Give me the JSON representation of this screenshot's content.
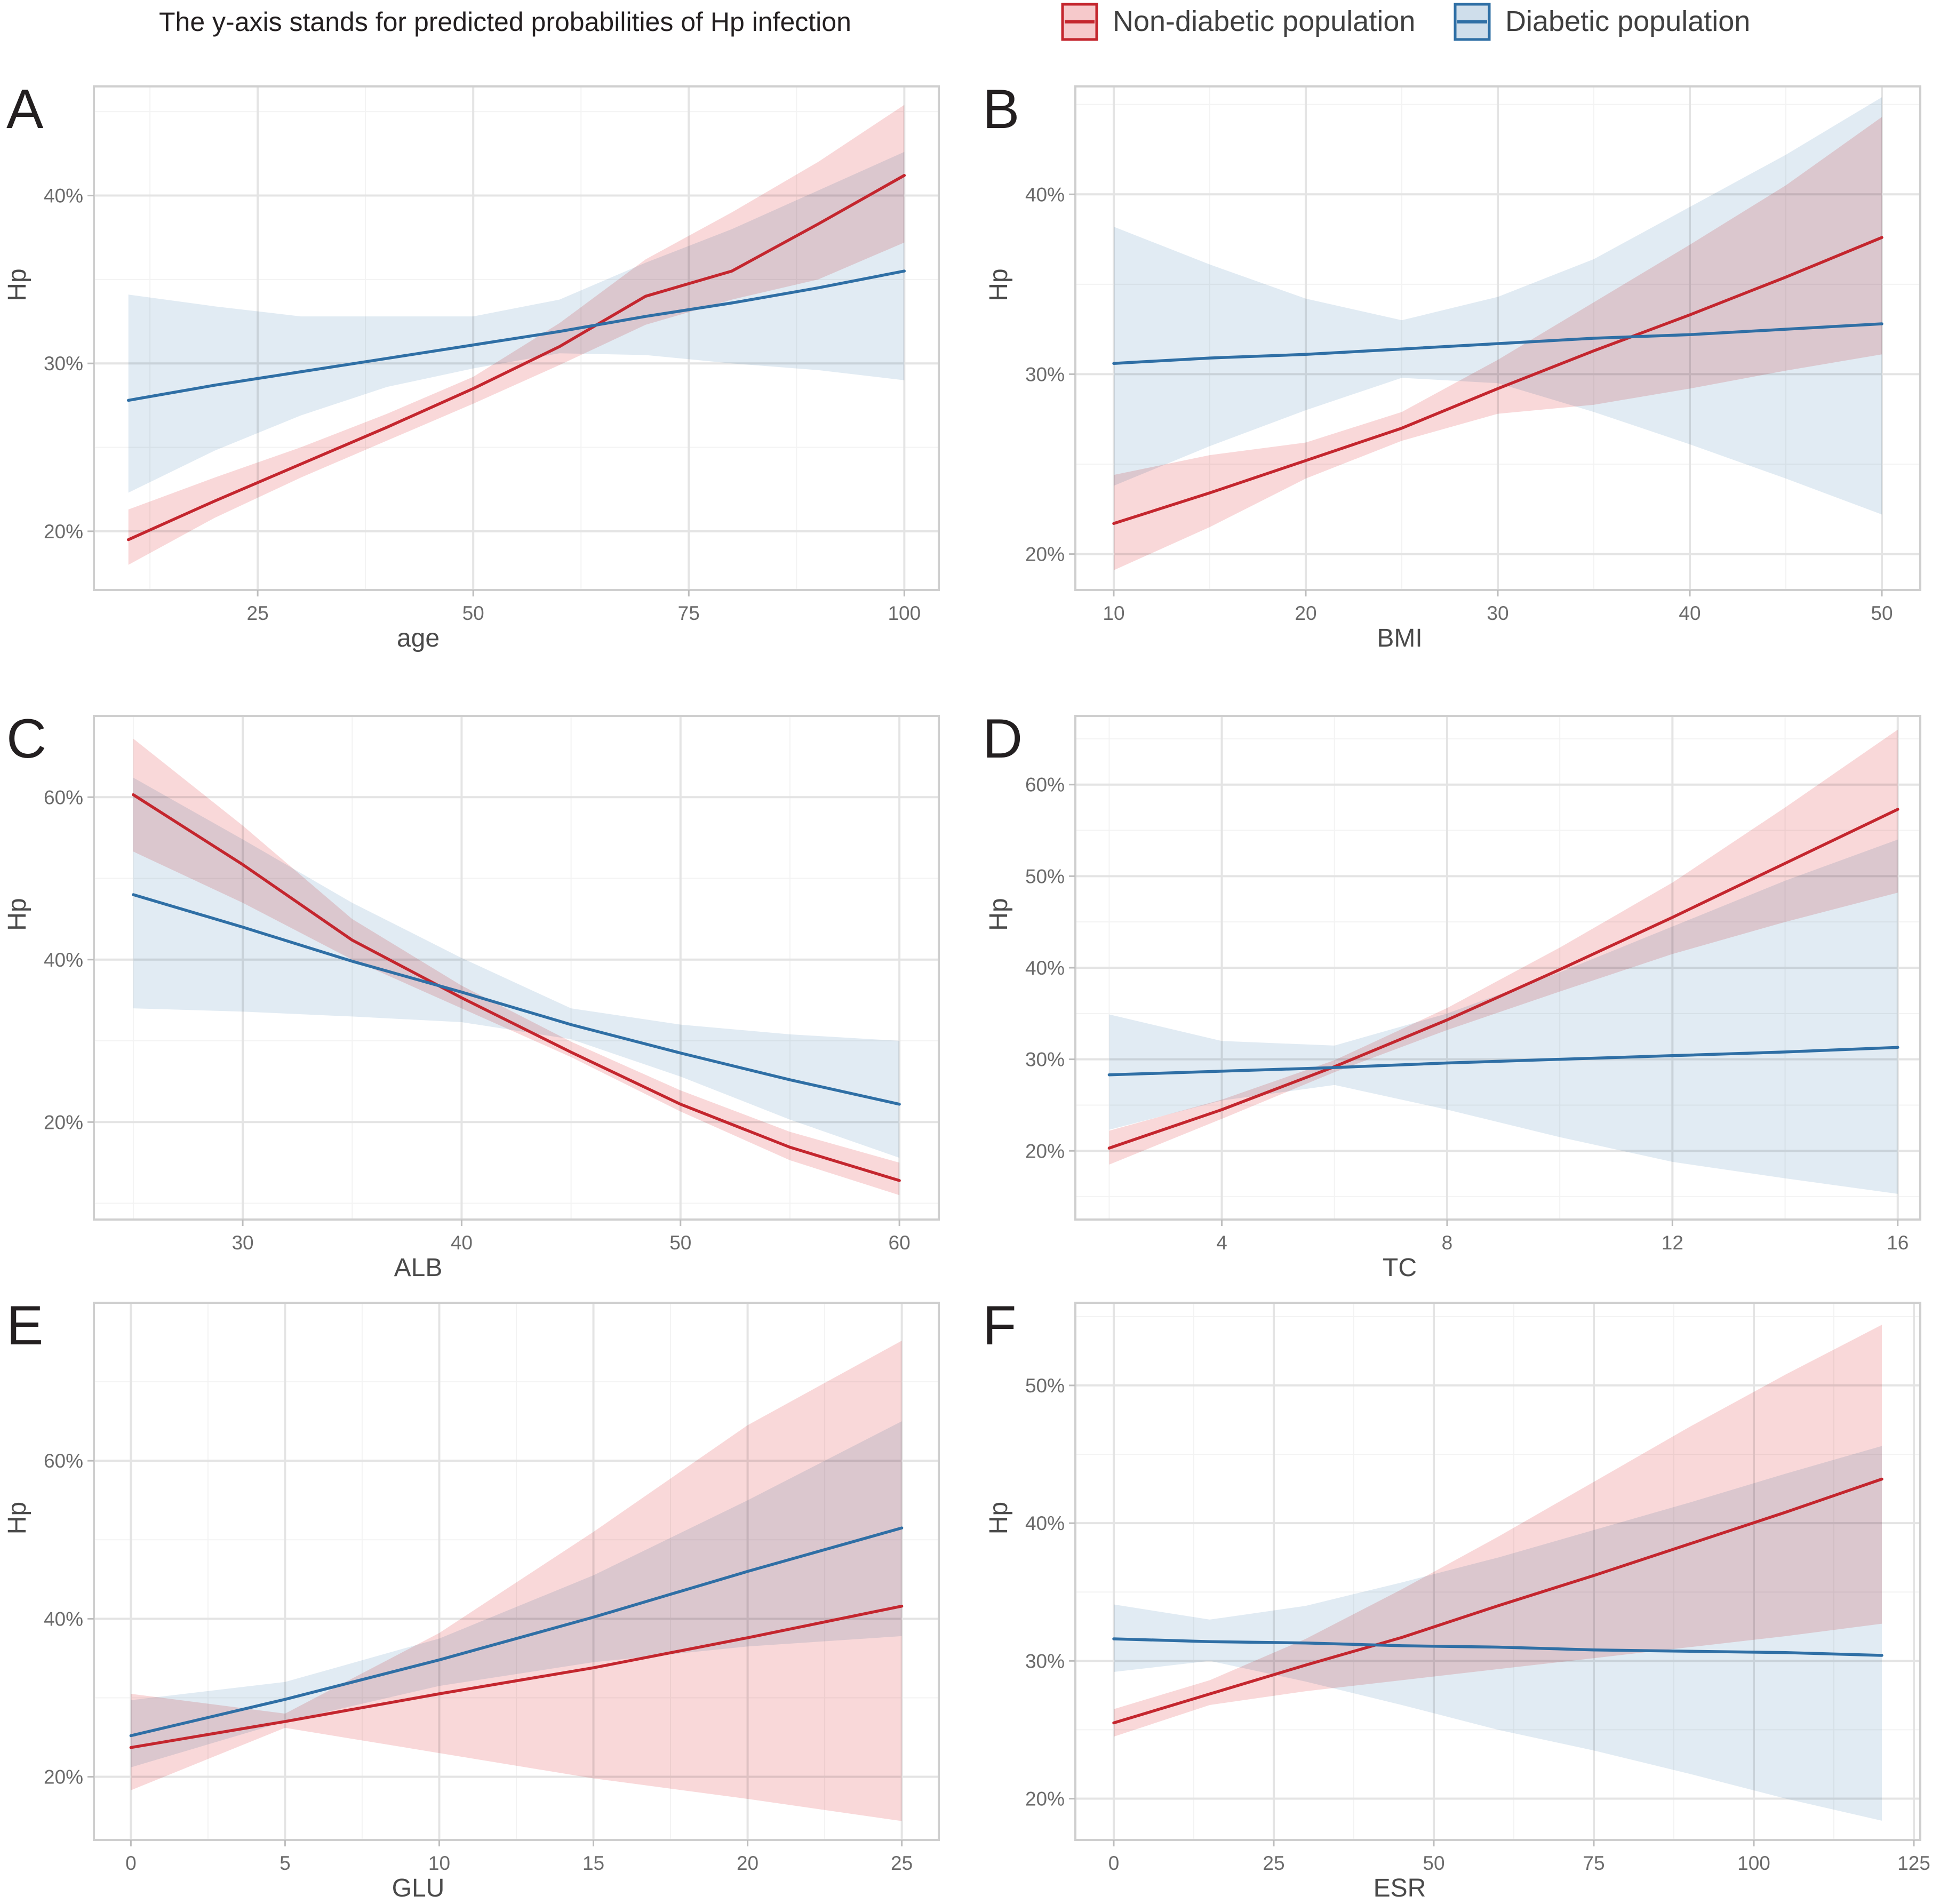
{
  "caption": "The y-axis stands for predicted probabilities of Hp infection",
  "legend": [
    {
      "label": "Non-diabetic population",
      "line_color": "#c4262e",
      "fill_color": "#f6c9cb"
    },
    {
      "label": "Diabetic population",
      "line_color": "#2f6fa5",
      "fill_color": "#cfdeeb"
    }
  ],
  "chart_data": [
    {
      "panel": "A",
      "type": "line",
      "xlabel": "age",
      "ylabel": "Hp",
      "xlim": [
        6,
        104
      ],
      "ylim": [
        16.5,
        46.5
      ],
      "xticks": [
        25,
        50,
        75,
        100
      ],
      "xtick_labels": [
        "25",
        "50",
        "75",
        "100"
      ],
      "yticks": [
        20,
        30,
        40
      ],
      "ytick_labels": [
        "20%",
        "30%",
        "40%"
      ],
      "minor_x": [
        12.5,
        37.5,
        62.5,
        87.5
      ],
      "minor_y": [
        25,
        35,
        45
      ],
      "series": [
        {
          "name": "Non-diabetic population",
          "x": [
            10,
            20,
            30,
            40,
            50,
            60,
            70,
            80,
            90,
            100
          ],
          "y": [
            19.5,
            21.8,
            24.0,
            26.2,
            28.5,
            31.0,
            34.0,
            35.5,
            38.3,
            41.2
          ],
          "lower": [
            18.0,
            20.8,
            23.2,
            25.4,
            27.6,
            29.9,
            32.3,
            33.8,
            35.0,
            37.2
          ],
          "upper": [
            21.3,
            23.2,
            25.0,
            27.0,
            29.2,
            32.4,
            36.2,
            39.0,
            42.0,
            45.4
          ]
        },
        {
          "name": "Diabetic population",
          "x": [
            10,
            20,
            30,
            40,
            50,
            60,
            70,
            80,
            90,
            100
          ],
          "y": [
            27.8,
            28.7,
            29.5,
            30.3,
            31.1,
            31.9,
            32.8,
            33.6,
            34.5,
            35.5
          ],
          "lower": [
            22.3,
            24.8,
            26.9,
            28.6,
            29.7,
            30.6,
            30.5,
            30.0,
            29.6,
            29.0
          ],
          "upper": [
            34.1,
            33.4,
            32.8,
            32.8,
            32.8,
            33.8,
            36.0,
            38.0,
            40.3,
            42.6
          ]
        }
      ]
    },
    {
      "panel": "B",
      "type": "line",
      "xlabel": "BMI",
      "ylabel": "Hp",
      "xlim": [
        8,
        52
      ],
      "ylim": [
        18,
        46
      ],
      "xticks": [
        10,
        20,
        30,
        40,
        50
      ],
      "xtick_labels": [
        "10",
        "20",
        "30",
        "40",
        "50"
      ],
      "yticks": [
        20,
        30,
        40
      ],
      "ytick_labels": [
        "20%",
        "30%",
        "40%"
      ],
      "minor_x": [
        15,
        25,
        35,
        45
      ],
      "minor_y": [
        25,
        35,
        45
      ],
      "series": [
        {
          "name": "Non-diabetic population",
          "x": [
            10,
            15,
            20,
            25,
            30,
            35,
            40,
            45,
            50
          ],
          "y": [
            21.7,
            23.4,
            25.2,
            27.0,
            29.2,
            31.3,
            33.3,
            35.4,
            37.6
          ],
          "lower": [
            19.1,
            21.5,
            24.2,
            26.3,
            27.8,
            28.3,
            29.2,
            30.2,
            31.1
          ],
          "upper": [
            24.4,
            25.5,
            26.2,
            27.9,
            30.8,
            34.0,
            37.2,
            40.5,
            44.3
          ]
        },
        {
          "name": "Diabetic population",
          "x": [
            10,
            15,
            20,
            25,
            30,
            35,
            40,
            45,
            50
          ],
          "y": [
            30.6,
            30.9,
            31.1,
            31.4,
            31.7,
            32.0,
            32.2,
            32.5,
            32.8
          ],
          "lower": [
            23.8,
            26.0,
            28.0,
            29.8,
            29.5,
            27.9,
            26.1,
            24.2,
            22.2
          ],
          "upper": [
            38.2,
            36.1,
            34.2,
            33.0,
            34.3,
            36.4,
            39.3,
            42.2,
            45.4
          ]
        }
      ]
    },
    {
      "panel": "C",
      "type": "line",
      "xlabel": "ALB",
      "ylabel": "Hp",
      "xlim": [
        23.2,
        61.8
      ],
      "ylim": [
        8,
        70
      ],
      "xticks": [
        30,
        40,
        50,
        60
      ],
      "xtick_labels": [
        "30",
        "40",
        "50",
        "60"
      ],
      "yticks": [
        20,
        40,
        60
      ],
      "ytick_labels": [
        "20%",
        "40%",
        "60%"
      ],
      "minor_x": [
        25,
        35,
        45,
        55
      ],
      "minor_y": [
        10,
        30,
        50
      ],
      "series": [
        {
          "name": "Non-diabetic population",
          "x": [
            25,
            30,
            35,
            40,
            45,
            50,
            55,
            60
          ],
          "y": [
            60.3,
            51.7,
            42.4,
            35.3,
            28.6,
            22.2,
            16.9,
            12.8
          ],
          "lower": [
            53.3,
            47.0,
            40.0,
            34.0,
            28.0,
            21.3,
            15.3,
            11.0
          ],
          "upper": [
            67.2,
            56.5,
            45.0,
            36.8,
            29.9,
            23.9,
            18.8,
            15.0
          ]
        },
        {
          "name": "Diabetic population",
          "x": [
            25,
            30,
            35,
            40,
            45,
            50,
            55,
            60
          ],
          "y": [
            48.0,
            44.0,
            39.8,
            36.0,
            32.0,
            28.5,
            25.2,
            22.2
          ],
          "lower": [
            34.0,
            33.6,
            33.0,
            32.3,
            30.2,
            25.6,
            20.3,
            15.6
          ],
          "upper": [
            62.4,
            54.8,
            47.0,
            40.2,
            34.0,
            32.0,
            30.8,
            30.0
          ]
        }
      ]
    },
    {
      "panel": "D",
      "type": "line",
      "xlabel": "TC",
      "ylabel": "Hp",
      "xlim": [
        1.4,
        16.4
      ],
      "ylim": [
        12.5,
        67.5
      ],
      "xticks": [
        4,
        8,
        12,
        16
      ],
      "xtick_labels": [
        "4",
        "8",
        "12",
        "16"
      ],
      "yticks": [
        20,
        30,
        40,
        50,
        60
      ],
      "ytick_labels": [
        "20%",
        "30%",
        "40%",
        "50%",
        "60%"
      ],
      "minor_x": [
        2,
        6,
        10,
        14
      ],
      "minor_y": [
        15,
        25,
        35,
        45,
        55,
        65
      ],
      "series": [
        {
          "name": "Non-diabetic population",
          "x": [
            2,
            4,
            6,
            8,
            10,
            12,
            14,
            16
          ],
          "y": [
            20.3,
            24.5,
            29.2,
            34.3,
            39.8,
            45.5,
            51.4,
            57.3
          ],
          "lower": [
            18.5,
            23.5,
            28.6,
            33.2,
            37.4,
            41.5,
            45.0,
            48.2
          ],
          "upper": [
            22.2,
            25.6,
            29.9,
            35.6,
            42.2,
            49.3,
            57.5,
            66.0
          ]
        },
        {
          "name": "Diabetic population",
          "x": [
            2,
            4,
            6,
            8,
            10,
            12,
            14,
            16
          ],
          "y": [
            28.3,
            28.7,
            29.1,
            29.6,
            30.0,
            30.4,
            30.8,
            31.3
          ],
          "lower": [
            22.3,
            25.5,
            27.2,
            24.5,
            21.5,
            18.8,
            17.0,
            15.3
          ],
          "upper": [
            34.9,
            32.0,
            31.5,
            35.0,
            39.5,
            44.5,
            49.5,
            54.0
          ]
        }
      ]
    },
    {
      "panel": "E",
      "type": "line",
      "xlabel": "GLU",
      "ylabel": "Hp",
      "xlim": [
        -1.2,
        26.2
      ],
      "ylim": [
        12,
        80
      ],
      "xticks": [
        0,
        5,
        10,
        15,
        20,
        25
      ],
      "xtick_labels": [
        "0",
        "5",
        "10",
        "15",
        "20",
        "25"
      ],
      "yticks": [
        20,
        40,
        60
      ],
      "ytick_labels": [
        "20%",
        "40%",
        "60%"
      ],
      "minor_x": [
        2.5,
        7.5,
        12.5,
        17.5,
        22.5
      ],
      "minor_y": [
        30,
        50,
        70
      ],
      "series": [
        {
          "name": "Non-diabetic population",
          "x": [
            0,
            5,
            10,
            15,
            20,
            25
          ],
          "y": [
            23.7,
            27.0,
            30.5,
            33.8,
            37.6,
            41.6
          ],
          "lower": [
            18.3,
            26.2,
            23.0,
            19.8,
            17.2,
            14.4
          ],
          "upper": [
            30.5,
            28.0,
            38.2,
            51.0,
            64.5,
            75.2
          ]
        },
        {
          "name": "Diabetic population",
          "x": [
            0,
            5,
            10,
            15,
            20,
            25
          ],
          "y": [
            25.2,
            29.8,
            34.8,
            40.2,
            46.0,
            51.5
          ],
          "lower": [
            21.2,
            27.0,
            31.5,
            34.5,
            36.5,
            37.8
          ],
          "upper": [
            29.7,
            32.0,
            37.5,
            45.5,
            55.0,
            65.0
          ]
        }
      ]
    },
    {
      "panel": "F",
      "type": "line",
      "xlabel": "ESR",
      "ylabel": "Hp",
      "xlim": [
        -6,
        126
      ],
      "ylim": [
        17,
        56
      ],
      "xticks": [
        0,
        25,
        50,
        75,
        100,
        125
      ],
      "xtick_labels": [
        "0",
        "25",
        "50",
        "75",
        "100",
        "125"
      ],
      "yticks": [
        20,
        30,
        40,
        50
      ],
      "ytick_labels": [
        "20%",
        "30%",
        "40%",
        "50%"
      ],
      "minor_x": [
        12.5,
        37.5,
        62.5,
        87.5,
        112.5
      ],
      "minor_y": [
        25,
        35,
        45,
        55
      ],
      "series": [
        {
          "name": "Non-diabetic population",
          "x": [
            0,
            15,
            30,
            45,
            60,
            75,
            90,
            105,
            120
          ],
          "y": [
            25.5,
            27.6,
            29.7,
            31.7,
            34.0,
            36.2,
            38.5,
            40.8,
            43.2
          ],
          "lower": [
            24.5,
            26.8,
            27.8,
            28.6,
            29.4,
            30.2,
            31.0,
            31.8,
            32.7
          ],
          "upper": [
            26.5,
            28.6,
            31.6,
            35.2,
            39.0,
            43.0,
            47.0,
            50.8,
            54.4
          ]
        },
        {
          "name": "Diabetic population",
          "x": [
            0,
            15,
            30,
            45,
            60,
            75,
            90,
            105,
            120
          ],
          "y": [
            31.6,
            31.4,
            31.3,
            31.1,
            31.0,
            30.8,
            30.7,
            30.6,
            30.4
          ],
          "lower": [
            29.2,
            30.0,
            28.5,
            26.8,
            25.0,
            23.5,
            21.8,
            20.0,
            18.4
          ],
          "upper": [
            34.1,
            33.0,
            34.0,
            35.7,
            37.5,
            39.5,
            41.5,
            43.6,
            45.6
          ]
        }
      ]
    }
  ]
}
